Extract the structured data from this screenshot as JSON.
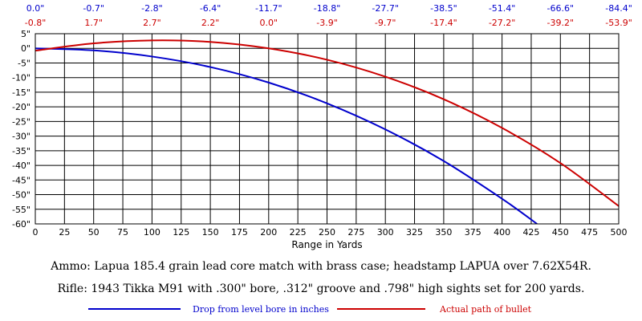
{
  "chart_data": {
    "type": "line",
    "xlabel": "Range in Yards",
    "ylabel": "",
    "xlim": [
      0,
      500
    ],
    "ylim": [
      -60,
      5
    ],
    "x_ticks": [
      "0",
      "25",
      "50",
      "75",
      "100",
      "125",
      "150",
      "175",
      "200",
      "225",
      "250",
      "275",
      "300",
      "325",
      "350",
      "375",
      "400",
      "425",
      "450",
      "475",
      "500"
    ],
    "y_ticks": [
      "5\"",
      "0\"",
      "-5\"",
      "-10\"",
      "-15\"",
      "-20\"",
      "-25\"",
      "-30\"",
      "-35\"",
      "-40\"",
      "-45\"",
      "-50\"",
      "-55\"",
      "-60\""
    ],
    "grid": true,
    "top_label_ranges": [
      0,
      50,
      100,
      150,
      200,
      250,
      300,
      350,
      400,
      450,
      500
    ],
    "top_labels_drop": [
      "0.0\"",
      "-0.7\"",
      "-2.8\"",
      "-6.4\"",
      "-11.7\"",
      "-18.8\"",
      "-27.7\"",
      "-38.5\"",
      "-51.4\"",
      "-66.6\"",
      "-84.4\""
    ],
    "top_labels_path": [
      "-0.8\"",
      "1.7\"",
      "2.7\"",
      "2.2\"",
      "0.0\"",
      "-3.9\"",
      "-9.7\"",
      "-17.4\"",
      "-27.2\"",
      "-39.2\"",
      "-53.9\""
    ],
    "series": [
      {
        "name": "Drop from level bore in inches",
        "color": "#0000cc",
        "x": [
          0,
          50,
          100,
          150,
          200,
          250,
          300,
          350,
          400,
          430
        ],
        "y": [
          0.0,
          -0.7,
          -2.8,
          -6.4,
          -11.7,
          -18.8,
          -27.7,
          -38.5,
          -51.4,
          -60.0
        ]
      },
      {
        "name": "Actual path of bullet",
        "color": "#cc0000",
        "x": [
          0,
          50,
          100,
          150,
          200,
          250,
          300,
          350,
          400,
          450,
          500
        ],
        "y": [
          -0.8,
          1.7,
          2.7,
          2.2,
          0.0,
          -3.9,
          -9.7,
          -17.4,
          -27.2,
          -39.2,
          -53.9
        ]
      }
    ],
    "legend_position": "bottom",
    "captions": [
      "Ammo:  Lapua 185.4 grain lead core match with brass case; headstamp LAPUA over 7.62X54R.",
      "Rifle:  1943 Tikka M91 with .300\" bore, .312\" groove and .798\" high sights set for 200 yards."
    ]
  }
}
